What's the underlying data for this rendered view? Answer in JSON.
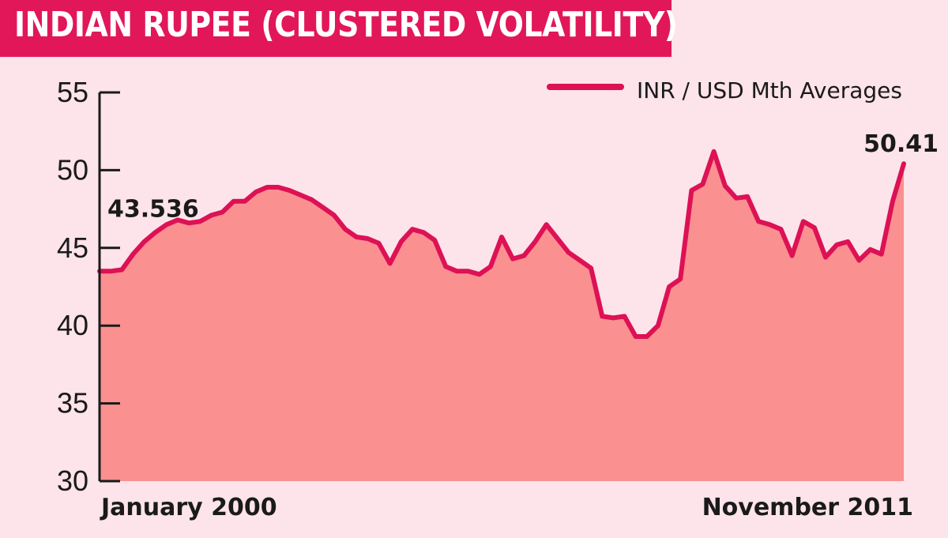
{
  "title": "INDIAN RUPEE (CLUSTERED VOLATILITY)",
  "colors": {
    "title_bg": "#e1175a",
    "line": "#dd1155",
    "area": "#fb9090",
    "background": "#fde3ea"
  },
  "chart_data": {
    "type": "area",
    "series": [
      {
        "name": "INR / USD Mth Averages",
        "values": [
          43.5,
          43.5,
          43.6,
          44.6,
          45.4,
          46.0,
          46.5,
          46.8,
          46.6,
          46.7,
          47.1,
          47.3,
          48.0,
          48.0,
          48.6,
          48.9,
          48.9,
          48.7,
          48.4,
          48.1,
          47.6,
          47.1,
          46.2,
          45.7,
          45.6,
          45.3,
          44.0,
          45.4,
          46.2,
          46.0,
          45.5,
          43.8,
          43.5,
          43.5,
          43.3,
          43.8,
          45.7,
          44.3,
          44.5,
          45.4,
          46.5,
          45.6,
          44.7,
          44.2,
          43.7,
          40.6,
          40.5,
          40.6,
          39.3,
          39.3,
          40.0,
          42.5,
          43.0,
          48.7,
          49.1,
          51.2,
          49.0,
          48.2,
          48.3,
          46.7,
          46.5,
          46.2,
          44.5,
          46.7,
          46.3,
          44.4,
          45.2,
          45.4,
          44.2,
          44.9,
          44.6,
          48.0,
          50.41
        ]
      }
    ],
    "x_start_label": "January 2000",
    "x_end_label": "November 2011",
    "ylim": [
      30,
      55
    ],
    "yticks": [
      30,
      35,
      40,
      45,
      50,
      55
    ],
    "annotations": [
      {
        "text": "43.536",
        "value": 43.536,
        "point": "start"
      },
      {
        "text": "50.41",
        "value": 50.41,
        "point": "end"
      }
    ],
    "legend_placement": "top-right",
    "grid": false
  }
}
